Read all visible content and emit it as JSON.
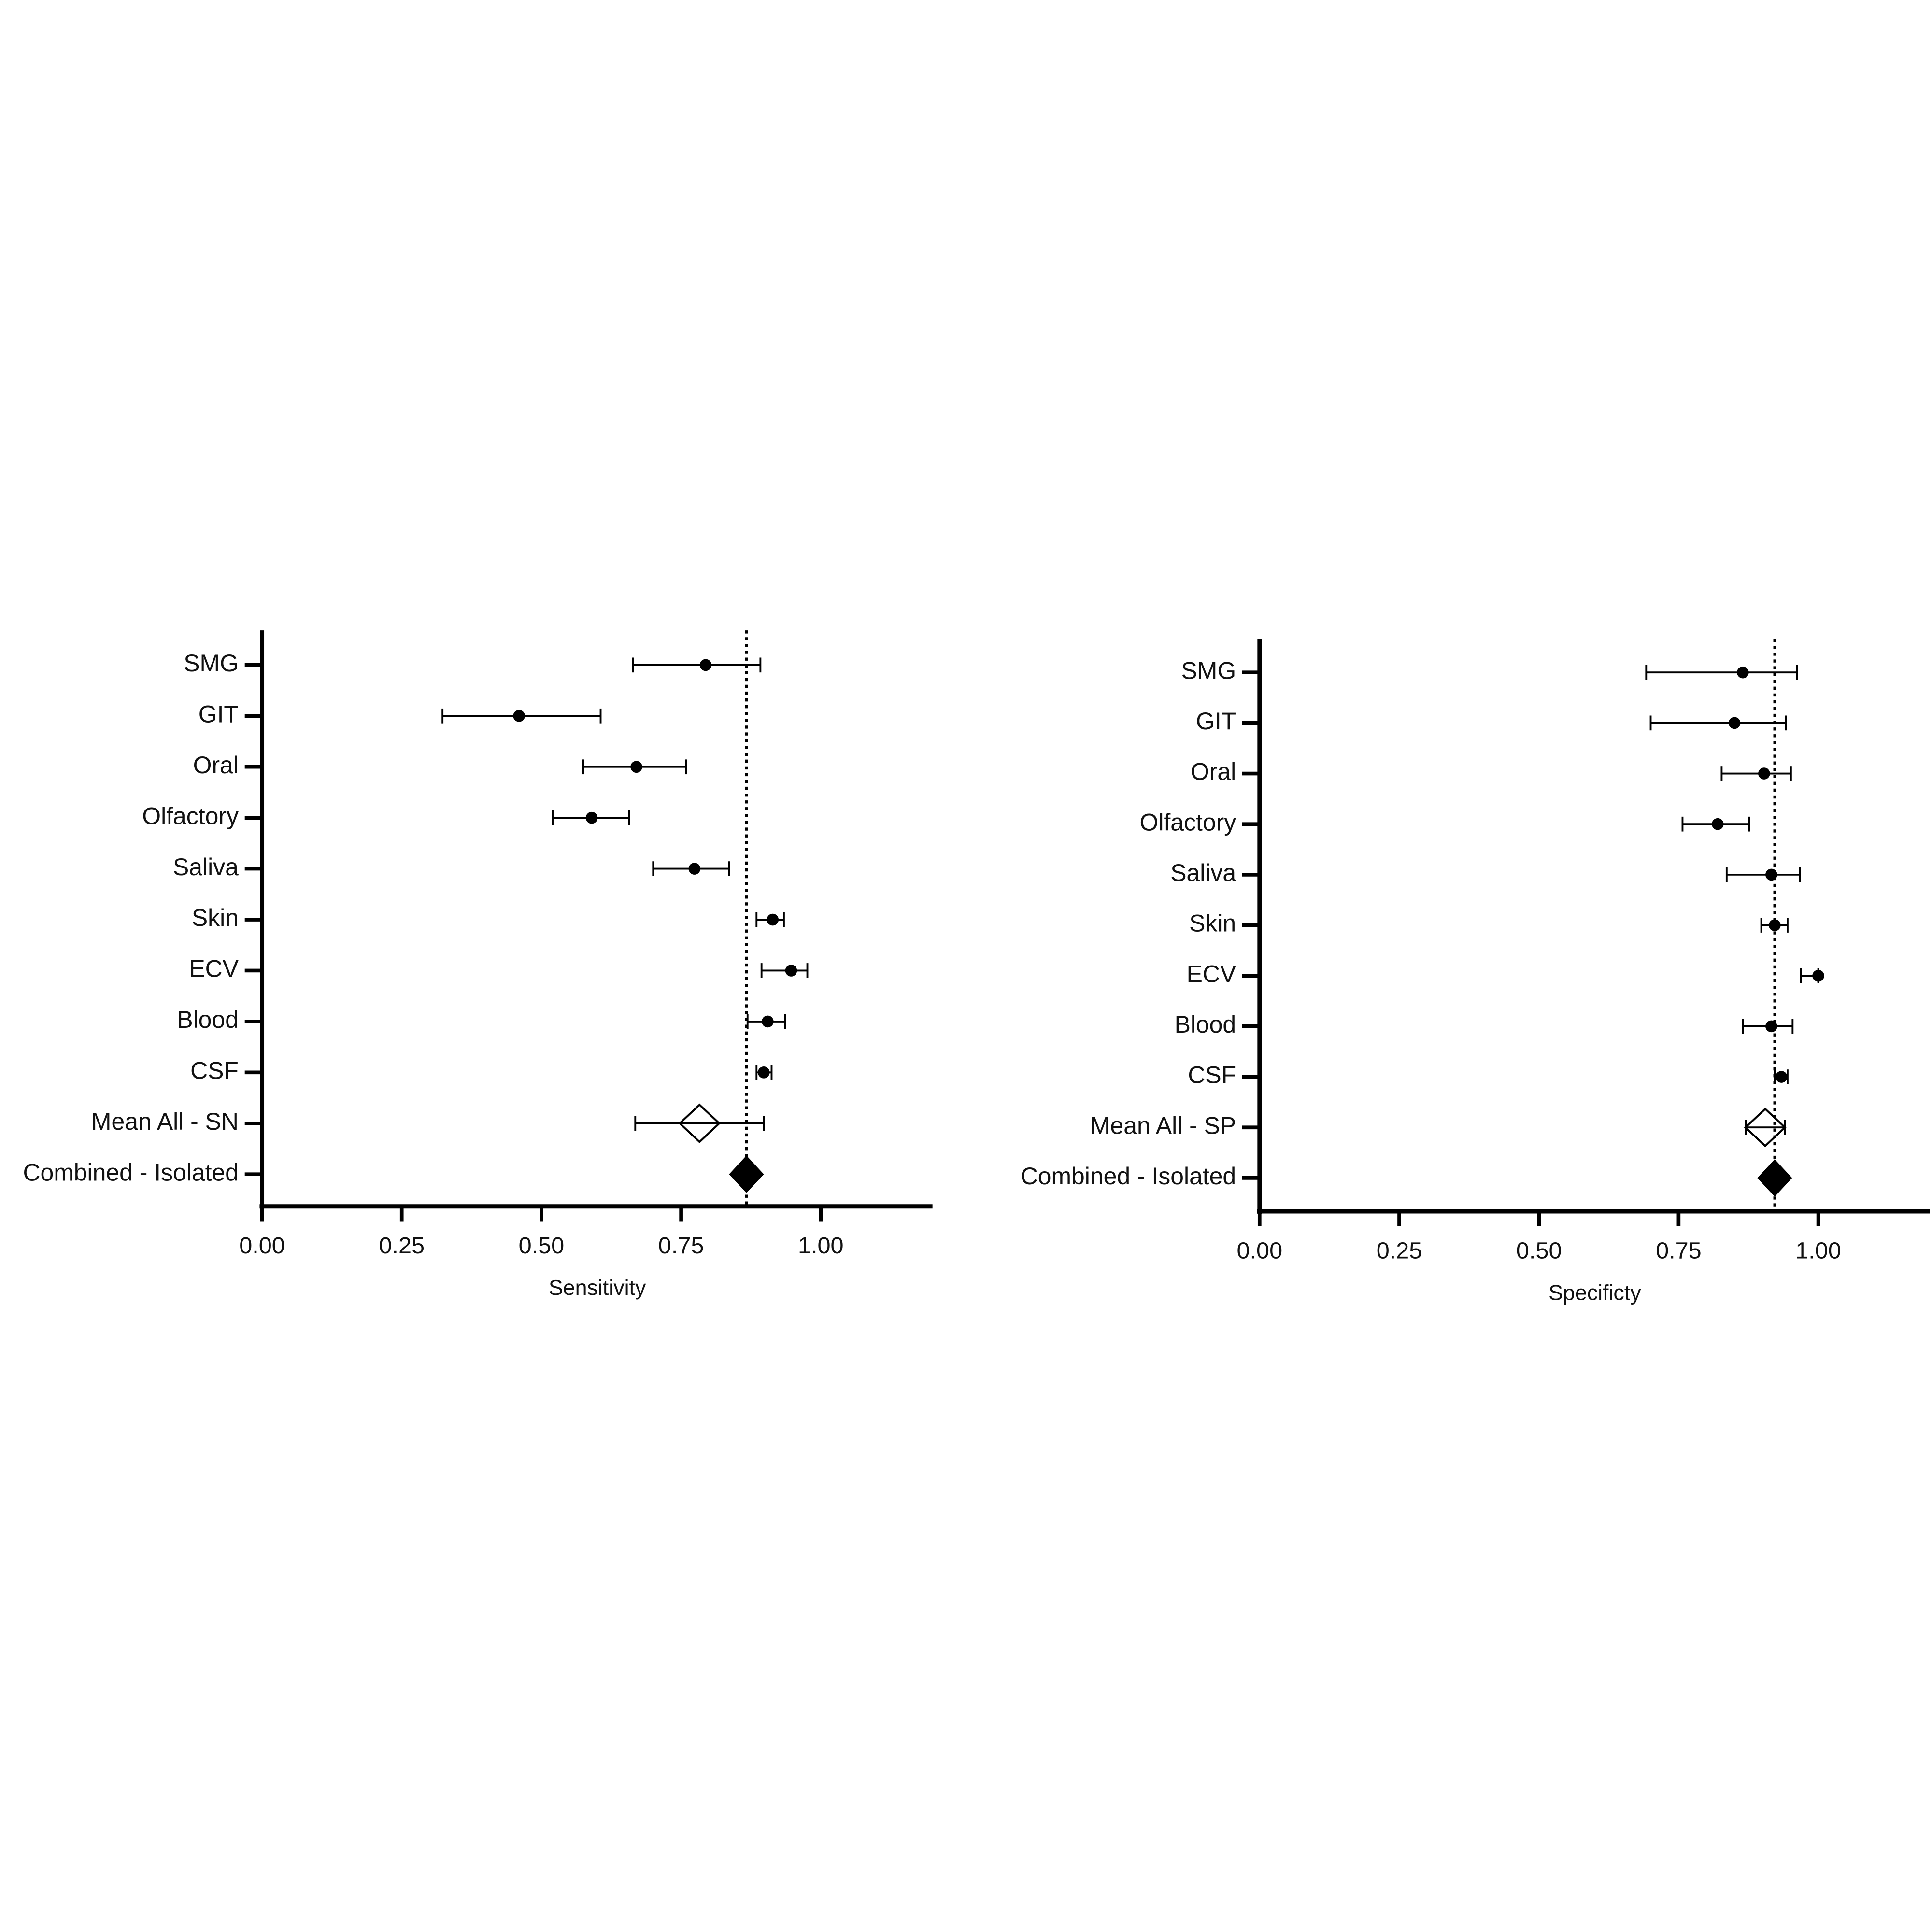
{
  "chart_data": [
    {
      "type": "forest",
      "x_label": "Sensitivity",
      "categories": [
        "SMG",
        "GIT",
        "Oral",
        "Olfactory",
        "Saliva",
        "Skin",
        "ECV",
        "Blood",
        "CSF",
        "Mean All - SN",
        "Combined - Isolated"
      ],
      "values": [
        0.794,
        0.46,
        0.67,
        0.59,
        0.774,
        0.914,
        0.947,
        0.905,
        0.898,
        0.783,
        0.867
      ],
      "lower": [
        0.664,
        0.323,
        0.575,
        0.52,
        0.7,
        0.885,
        0.894,
        0.869,
        0.885,
        0.668,
        0.852
      ],
      "upper": [
        0.892,
        0.606,
        0.759,
        0.657,
        0.836,
        0.934,
        0.976,
        0.936,
        0.912,
        0.898,
        0.882
      ],
      "markers": [
        "dot",
        "dot",
        "dot",
        "dot",
        "dot",
        "dot",
        "dot",
        "dot",
        "dot",
        "open-diamond",
        "filled-diamond"
      ],
      "reference_line": 0.867,
      "color": "#000000",
      "xlim": [
        0,
        1.2
      ],
      "xticks": [
        {
          "value": 0,
          "label": "0.00"
        },
        {
          "value": 0.25,
          "label": "0.25"
        },
        {
          "value": 0.5,
          "label": "0.50"
        },
        {
          "value": 0.75,
          "label": "0.75"
        },
        {
          "value": 1,
          "label": "1.00"
        }
      ]
    },
    {
      "type": "forest",
      "x_label": "Specificty",
      "categories": [
        "SMG",
        "GIT",
        "Oral",
        "Olfactory",
        "Saliva",
        "Skin",
        "ECV",
        "Blood",
        "CSF",
        "Mean All - SP",
        "Combined - Isolated"
      ],
      "values": [
        0.865,
        0.85,
        0.903,
        0.82,
        0.916,
        0.922,
        1,
        0.916,
        0.934,
        0.905,
        0.922
      ],
      "lower": [
        0.692,
        0.7,
        0.827,
        0.757,
        0.836,
        0.898,
        0.969,
        0.865,
        0.922,
        0.87,
        0.91
      ],
      "upper": [
        0.962,
        0.942,
        0.951,
        0.876,
        0.967,
        0.945,
        1,
        0.954,
        0.945,
        0.94,
        0.932
      ],
      "markers": [
        "dot",
        "dot",
        "dot",
        "dot",
        "dot",
        "dot",
        "dot",
        "dot",
        "dot",
        "open-diamond",
        "filled-diamond"
      ],
      "reference_line": 0.922,
      "color": "#000000",
      "xlim": [
        0,
        1.2
      ],
      "xticks": [
        {
          "value": 0,
          "label": "0.00"
        },
        {
          "value": 0.25,
          "label": "0.25"
        },
        {
          "value": 0.5,
          "label": "0.50"
        },
        {
          "value": 0.75,
          "label": "0.75"
        },
        {
          "value": 1,
          "label": "1.00"
        }
      ]
    }
  ]
}
